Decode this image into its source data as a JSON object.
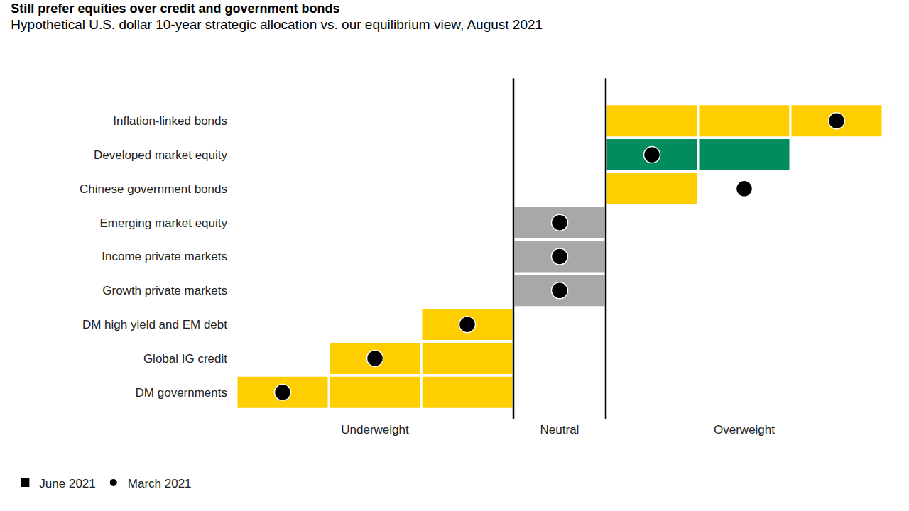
{
  "chart_data": {
    "type": "bar",
    "orientation": "horizontal",
    "title": "Still prefer equities over credit and government bonds",
    "subtitle": "Hypothetical U.S. dollar 10-year strategic allocation vs. our equilibrium view, August 2021",
    "categories": [
      "Inflation-linked bonds",
      "Developed market equity",
      "Chinese government bonds",
      "Emerging market equity",
      "Income private markets",
      "Growth private markets",
      "DM high yield and EM debt",
      "Global IG credit",
      "DM governments"
    ],
    "series": [
      {
        "name": "June 2021",
        "type": "bar",
        "values": [
          3,
          2,
          1,
          0,
          0,
          0,
          -1,
          -2,
          -3
        ],
        "colors": [
          "#FFCE00",
          "#008C5E",
          "#FFCE00",
          "#A8A8A8",
          "#A8A8A8",
          "#A8A8A8",
          "#FFCE00",
          "#FFCE00",
          "#FFCE00"
        ]
      },
      {
        "name": "March 2021",
        "type": "scatter",
        "marker": "circle",
        "color": "#000000",
        "values": [
          3,
          1,
          2,
          0,
          0,
          0,
          -1,
          -2,
          -3
        ]
      }
    ],
    "xlim": [
      -3.5,
      3.5
    ],
    "xticks": [
      {
        "value": -2,
        "label": "Underweight"
      },
      {
        "value": 0,
        "label": "Neutral"
      },
      {
        "value": 2,
        "label": "Overweight"
      }
    ],
    "grid": false,
    "legend": "bottom left"
  }
}
